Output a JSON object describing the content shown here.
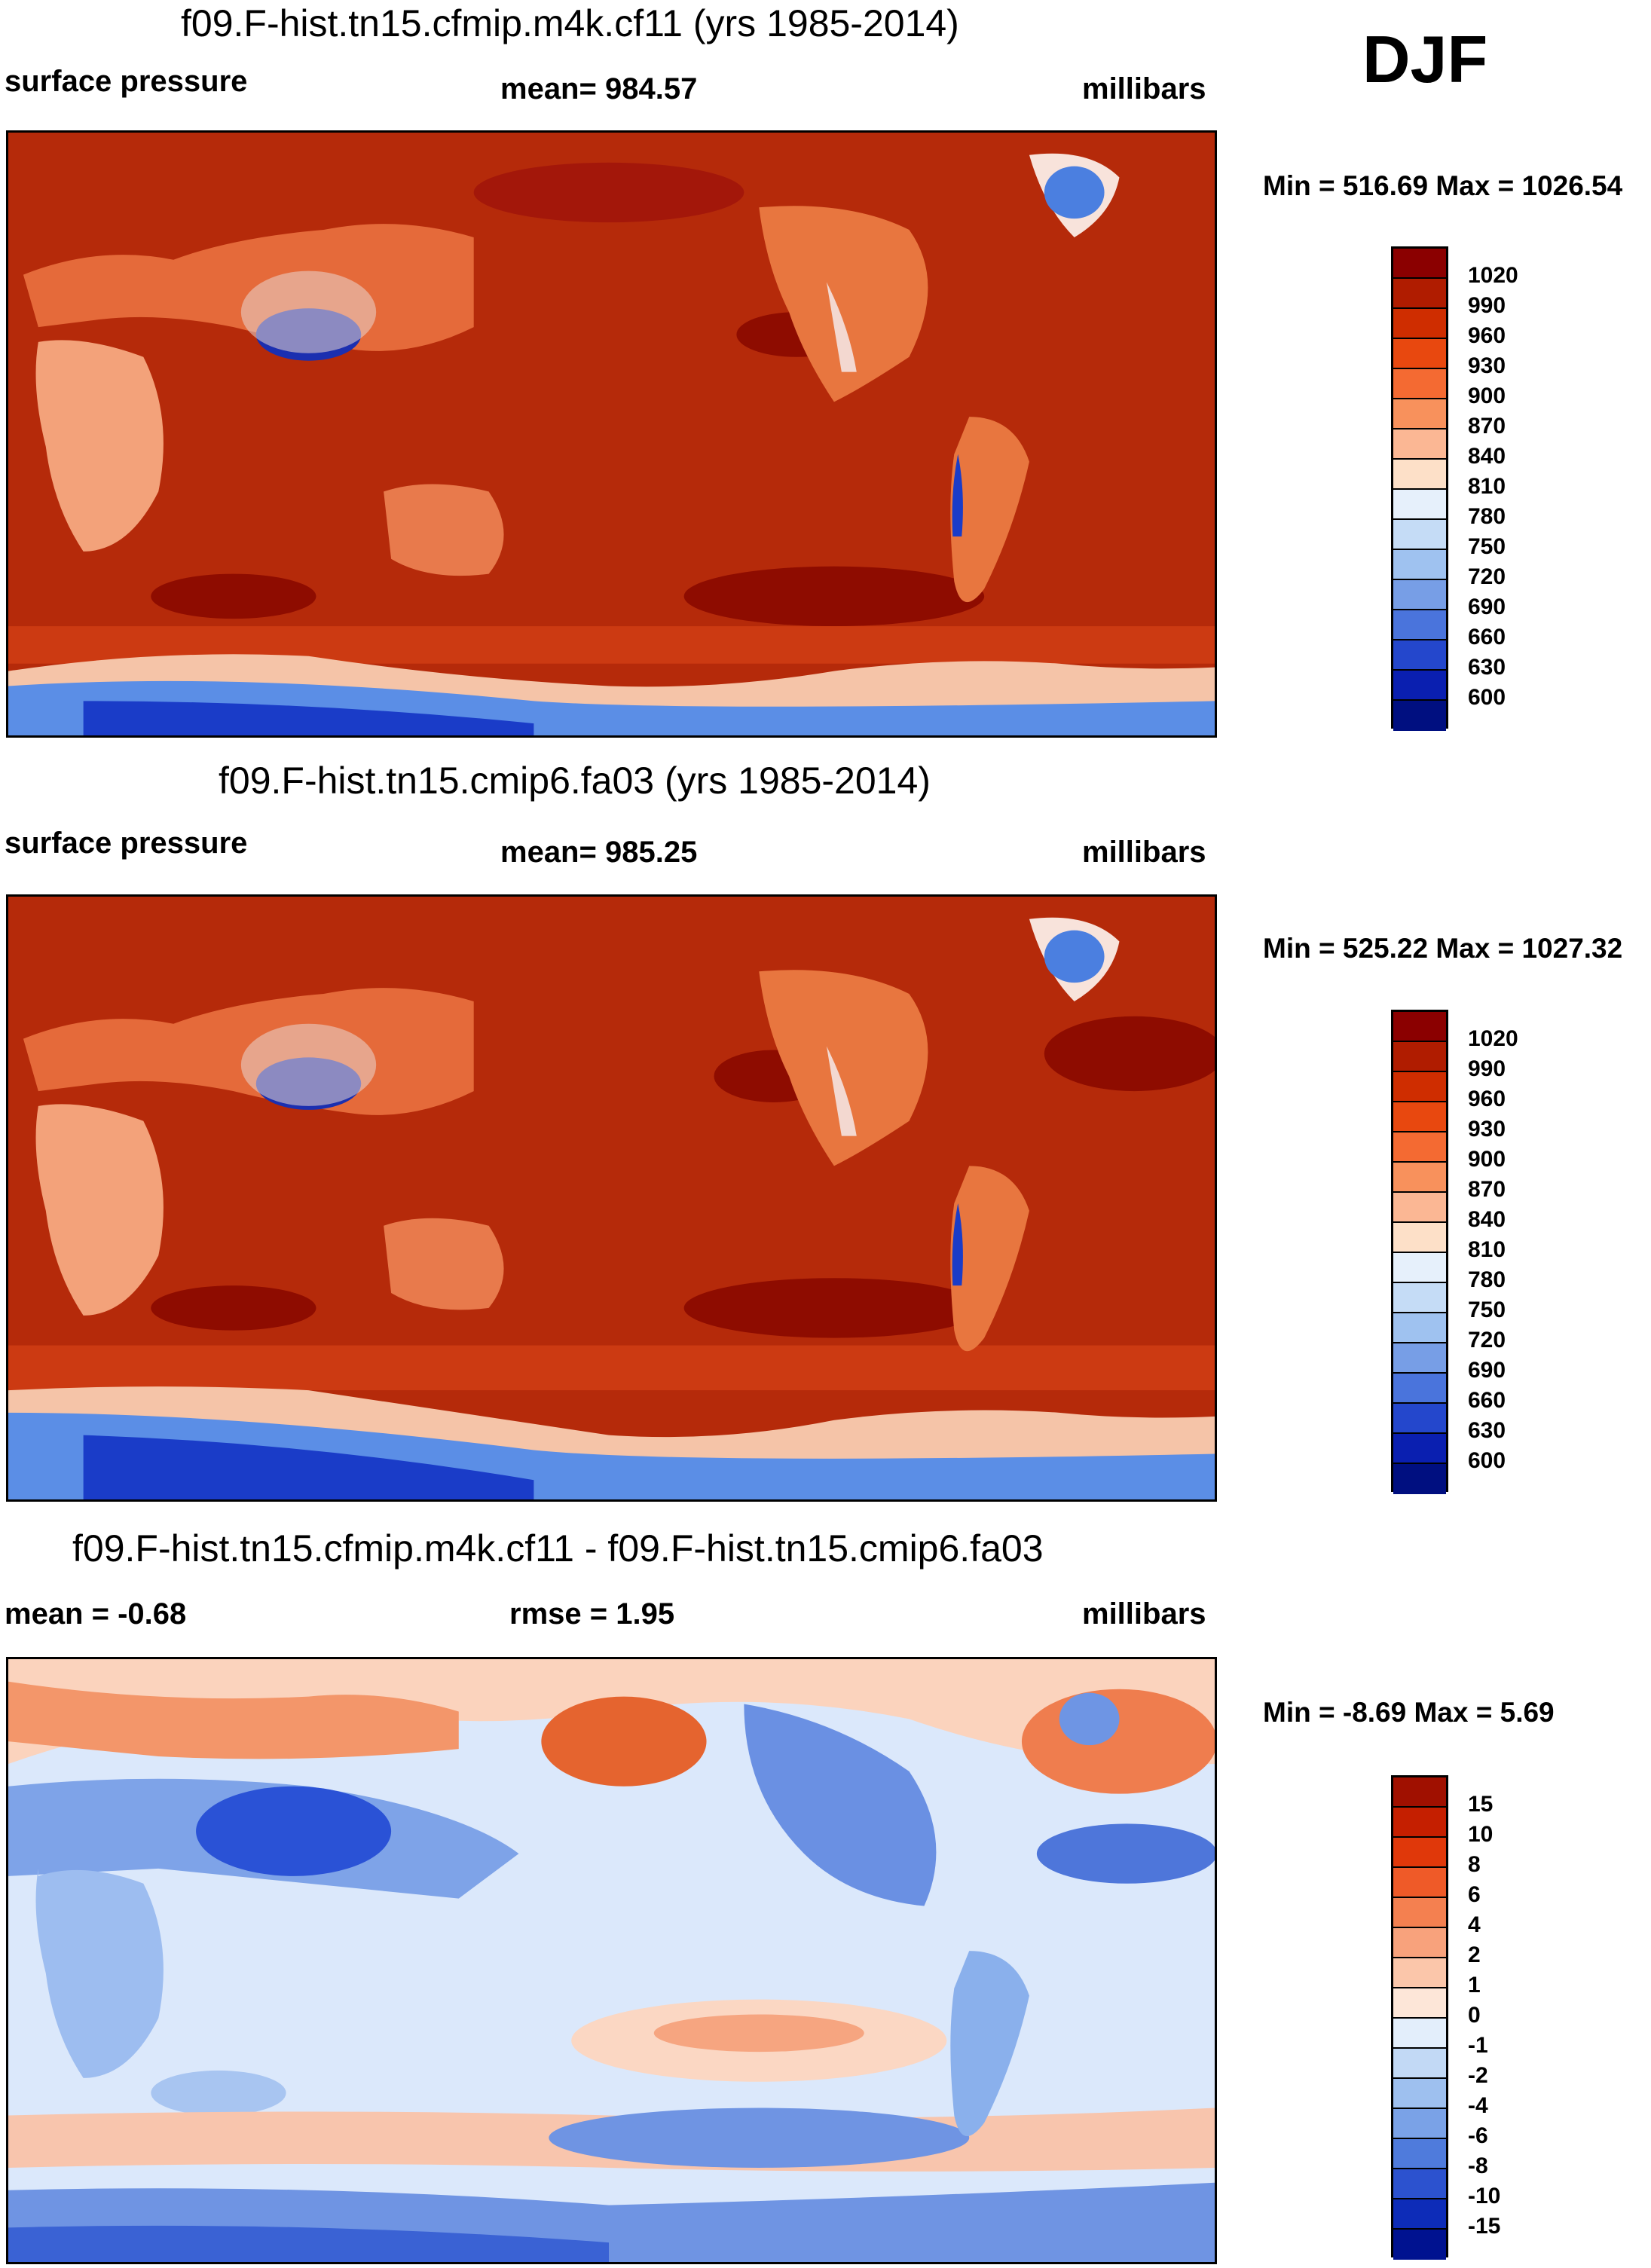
{
  "season": "DJF",
  "chart_data": [
    {
      "type": "heatmap",
      "title": "f09.F-hist.tn15.cfmip.m4k.cf11 (yrs 1985-2014)",
      "variable": "surface pressure",
      "mean_text": "mean= 984.57",
      "units": "millibars",
      "minmax_text": "Min = 516.69 Max = 1026.54",
      "min": 516.69,
      "max": 1026.54,
      "mean": 984.57,
      "colorbar_levels": [
        "1020",
        "990",
        "960",
        "930",
        "900",
        "870",
        "840",
        "810",
        "780",
        "750",
        "720",
        "690",
        "660",
        "630",
        "600"
      ],
      "colorbar_colors": [
        "#8b0000",
        "#b01c00",
        "#cf2d00",
        "#e8480f",
        "#f46a32",
        "#f8915c",
        "#fbb794",
        "#fde0c8",
        "#e6f0fb",
        "#c5dcf6",
        "#9fc2f0",
        "#779ee6",
        "#4a74dc",
        "#2447cc",
        "#0a1fb0",
        "#000f80"
      ]
    },
    {
      "type": "heatmap",
      "title": "f09.F-hist.tn15.cmip6.fa03 (yrs 1985-2014)",
      "variable": "surface pressure",
      "mean_text": "mean= 985.25",
      "units": "millibars",
      "minmax_text": "Min = 525.22 Max = 1027.32",
      "min": 525.22,
      "max": 1027.32,
      "mean": 985.25,
      "colorbar_levels": [
        "1020",
        "990",
        "960",
        "930",
        "900",
        "870",
        "840",
        "810",
        "780",
        "750",
        "720",
        "690",
        "660",
        "630",
        "600"
      ],
      "colorbar_colors": [
        "#8b0000",
        "#b01c00",
        "#cf2d00",
        "#e8480f",
        "#f46a32",
        "#f8915c",
        "#fbb794",
        "#fde0c8",
        "#e6f0fb",
        "#c5dcf6",
        "#9fc2f0",
        "#779ee6",
        "#4a74dc",
        "#2447cc",
        "#0a1fb0",
        "#000f80"
      ]
    },
    {
      "type": "heatmap",
      "title": "f09.F-hist.tn15.cfmip.m4k.cf11 - f09.F-hist.tn15.cmip6.fa03",
      "mean_text": "mean =  -0.68",
      "rmse_text": "rmse =   1.95",
      "units": "millibars",
      "minmax_text": "Min =  -8.69 Max =   5.69",
      "min": -8.69,
      "max": 5.69,
      "mean": -0.68,
      "rmse": 1.95,
      "colorbar_levels": [
        "15",
        "10",
        "8",
        "6",
        "4",
        "2",
        "1",
        "0",
        "-1",
        "-2",
        "-4",
        "-6",
        "-8",
        "-10",
        "-15"
      ],
      "colorbar_colors": [
        "#a01000",
        "#c51f00",
        "#e0380a",
        "#ef5a28",
        "#f48050",
        "#f8a27c",
        "#fbc6aa",
        "#fde6d8",
        "#e3eefb",
        "#c2d9f5",
        "#9ec0ef",
        "#7aa2e7",
        "#4f7bdc",
        "#2c52cf",
        "#0d2cb8",
        "#001290"
      ]
    }
  ]
}
